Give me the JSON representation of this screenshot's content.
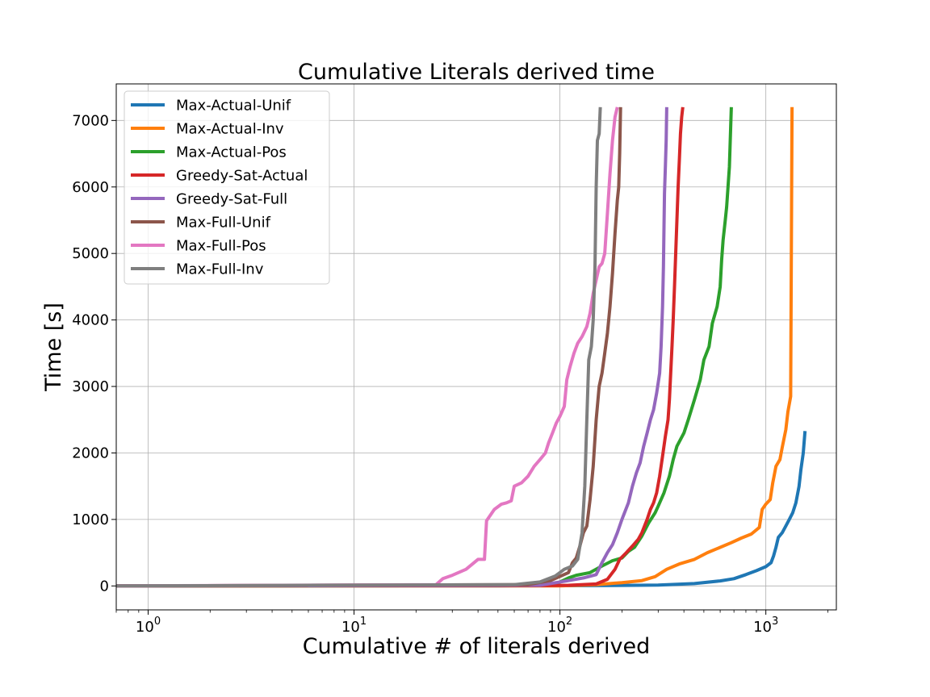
{
  "chart_data": {
    "type": "line",
    "title": "Cumulative Literals derived time",
    "xlabel": "Cumulative # of literals derived",
    "ylabel": "Time [s]",
    "x_scale": "log",
    "xlim": [
      0.7,
      2200
    ],
    "ylim": [
      -360,
      7550
    ],
    "x_ticks": [
      {
        "value": 1,
        "base": "10",
        "exp": "0"
      },
      {
        "value": 10,
        "base": "10",
        "exp": "1"
      },
      {
        "value": 100,
        "base": "10",
        "exp": "2"
      },
      {
        "value": 1000,
        "base": "10",
        "exp": "3"
      }
    ],
    "y_ticks": [
      {
        "value": 0,
        "label": "0"
      },
      {
        "value": 1000,
        "label": "1000"
      },
      {
        "value": 2000,
        "label": "2000"
      },
      {
        "value": 3000,
        "label": "3000"
      },
      {
        "value": 4000,
        "label": "4000"
      },
      {
        "value": 5000,
        "label": "5000"
      },
      {
        "value": 6000,
        "label": "6000"
      },
      {
        "value": 7000,
        "label": "7000"
      }
    ],
    "grid": true,
    "legend_position": "top-left",
    "series": [
      {
        "name": "Max-Actual-Unif",
        "color": "#1f77b4",
        "points": [
          [
            0.7,
            0
          ],
          [
            50,
            2
          ],
          [
            150,
            5
          ],
          [
            300,
            12
          ],
          [
            450,
            35
          ],
          [
            600,
            75
          ],
          [
            700,
            110
          ],
          [
            800,
            170
          ],
          [
            900,
            230
          ],
          [
            1000,
            290
          ],
          [
            1060,
            350
          ],
          [
            1090,
            450
          ],
          [
            1120,
            580
          ],
          [
            1150,
            730
          ],
          [
            1200,
            800
          ],
          [
            1250,
            900
          ],
          [
            1300,
            1000
          ],
          [
            1350,
            1100
          ],
          [
            1400,
            1250
          ],
          [
            1450,
            1500
          ],
          [
            1480,
            1750
          ],
          [
            1520,
            2000
          ],
          [
            1550,
            2330
          ]
        ]
      },
      {
        "name": "Max-Actual-Inv",
        "color": "#ff7f0e",
        "points": [
          [
            0.7,
            0
          ],
          [
            100,
            2
          ],
          [
            150,
            20
          ],
          [
            200,
            50
          ],
          [
            250,
            80
          ],
          [
            290,
            140
          ],
          [
            330,
            250
          ],
          [
            380,
            330
          ],
          [
            450,
            400
          ],
          [
            520,
            500
          ],
          [
            600,
            580
          ],
          [
            680,
            650
          ],
          [
            760,
            720
          ],
          [
            850,
            780
          ],
          [
            930,
            880
          ],
          [
            960,
            1150
          ],
          [
            1000,
            1230
          ],
          [
            1050,
            1300
          ],
          [
            1080,
            1550
          ],
          [
            1120,
            1800
          ],
          [
            1170,
            1900
          ],
          [
            1200,
            2080
          ],
          [
            1250,
            2350
          ],
          [
            1280,
            2620
          ],
          [
            1320,
            2850
          ],
          [
            1340,
            7200
          ]
        ]
      },
      {
        "name": "Max-Actual-Pos",
        "color": "#2ca02c",
        "points": [
          [
            0.7,
            0
          ],
          [
            50,
            5
          ],
          [
            90,
            20
          ],
          [
            100,
            60
          ],
          [
            110,
            120
          ],
          [
            120,
            160
          ],
          [
            140,
            200
          ],
          [
            160,
            300
          ],
          [
            180,
            380
          ],
          [
            200,
            420
          ],
          [
            215,
            520
          ],
          [
            230,
            580
          ],
          [
            250,
            750
          ],
          [
            270,
            950
          ],
          [
            290,
            1100
          ],
          [
            300,
            1200
          ],
          [
            320,
            1400
          ],
          [
            340,
            1650
          ],
          [
            355,
            1900
          ],
          [
            370,
            2100
          ],
          [
            400,
            2300
          ],
          [
            420,
            2500
          ],
          [
            450,
            2800
          ],
          [
            480,
            3100
          ],
          [
            500,
            3400
          ],
          [
            530,
            3600
          ],
          [
            550,
            3950
          ],
          [
            580,
            4200
          ],
          [
            600,
            4500
          ],
          [
            610,
            4900
          ],
          [
            620,
            5200
          ],
          [
            635,
            5500
          ],
          [
            645,
            5700
          ],
          [
            655,
            6000
          ],
          [
            665,
            6300
          ],
          [
            670,
            6600
          ],
          [
            675,
            6900
          ],
          [
            680,
            7200
          ]
        ]
      },
      {
        "name": "Greedy-Sat-Actual",
        "color": "#d62728",
        "points": [
          [
            0.7,
            0
          ],
          [
            80,
            5
          ],
          [
            110,
            10
          ],
          [
            150,
            30
          ],
          [
            170,
            100
          ],
          [
            185,
            250
          ],
          [
            195,
            400
          ],
          [
            210,
            500
          ],
          [
            225,
            600
          ],
          [
            240,
            700
          ],
          [
            250,
            800
          ],
          [
            265,
            1000
          ],
          [
            275,
            1150
          ],
          [
            285,
            1250
          ],
          [
            295,
            1400
          ],
          [
            305,
            1650
          ],
          [
            315,
            1950
          ],
          [
            325,
            2250
          ],
          [
            335,
            2500
          ],
          [
            340,
            2800
          ],
          [
            345,
            3200
          ],
          [
            350,
            3600
          ],
          [
            355,
            4000
          ],
          [
            360,
            4500
          ],
          [
            365,
            5000
          ],
          [
            370,
            5500
          ],
          [
            375,
            6000
          ],
          [
            380,
            6400
          ],
          [
            385,
            6800
          ],
          [
            390,
            7050
          ],
          [
            395,
            7200
          ]
        ]
      },
      {
        "name": "Greedy-Sat-Full",
        "color": "#9467bd",
        "points": [
          [
            0.7,
            0
          ],
          [
            80,
            10
          ],
          [
            110,
            80
          ],
          [
            130,
            120
          ],
          [
            150,
            170
          ],
          [
            160,
            350
          ],
          [
            170,
            500
          ],
          [
            180,
            620
          ],
          [
            190,
            800
          ],
          [
            200,
            1000
          ],
          [
            215,
            1250
          ],
          [
            225,
            1500
          ],
          [
            235,
            1700
          ],
          [
            245,
            1850
          ],
          [
            255,
            2100
          ],
          [
            265,
            2300
          ],
          [
            275,
            2500
          ],
          [
            285,
            2650
          ],
          [
            295,
            2900
          ],
          [
            305,
            3200
          ],
          [
            310,
            3600
          ],
          [
            315,
            4200
          ],
          [
            318,
            4800
          ],
          [
            320,
            5400
          ],
          [
            322,
            5900
          ],
          [
            325,
            6300
          ],
          [
            328,
            6700
          ],
          [
            330,
            7200
          ]
        ]
      },
      {
        "name": "Max-Full-Unif",
        "color": "#8c564b",
        "points": [
          [
            0.7,
            0
          ],
          [
            70,
            20
          ],
          [
            90,
            80
          ],
          [
            110,
            200
          ],
          [
            115,
            350
          ],
          [
            120,
            420
          ],
          [
            125,
            600
          ],
          [
            130,
            800
          ],
          [
            135,
            900
          ],
          [
            140,
            1300
          ],
          [
            145,
            1800
          ],
          [
            150,
            2500
          ],
          [
            155,
            3000
          ],
          [
            160,
            3200
          ],
          [
            165,
            3500
          ],
          [
            170,
            3800
          ],
          [
            175,
            4200
          ],
          [
            180,
            4700
          ],
          [
            185,
            5300
          ],
          [
            190,
            5800
          ],
          [
            193,
            6000
          ],
          [
            195,
            6500
          ],
          [
            197,
            7200
          ]
        ]
      },
      {
        "name": "Max-Full-Pos",
        "color": "#e377c2",
        "points": [
          [
            0.7,
            0
          ],
          [
            25,
            20
          ],
          [
            27,
            110
          ],
          [
            30,
            160
          ],
          [
            35,
            250
          ],
          [
            40,
            400
          ],
          [
            43,
            400
          ],
          [
            44,
            980
          ],
          [
            48,
            1150
          ],
          [
            52,
            1230
          ],
          [
            55,
            1250
          ],
          [
            58,
            1280
          ],
          [
            60,
            1500
          ],
          [
            65,
            1550
          ],
          [
            70,
            1650
          ],
          [
            75,
            1800
          ],
          [
            80,
            1900
          ],
          [
            85,
            2000
          ],
          [
            88,
            2150
          ],
          [
            92,
            2300
          ],
          [
            96,
            2450
          ],
          [
            100,
            2550
          ],
          [
            105,
            2700
          ],
          [
            108,
            3100
          ],
          [
            112,
            3300
          ],
          [
            117,
            3500
          ],
          [
            122,
            3650
          ],
          [
            128,
            3750
          ],
          [
            135,
            3900
          ],
          [
            140,
            4100
          ],
          [
            145,
            4400
          ],
          [
            150,
            4600
          ],
          [
            155,
            4800
          ],
          [
            160,
            4850
          ],
          [
            165,
            5000
          ],
          [
            170,
            5600
          ],
          [
            175,
            6200
          ],
          [
            180,
            6700
          ],
          [
            185,
            7050
          ],
          [
            190,
            7200
          ]
        ]
      },
      {
        "name": "Max-Full-Inv",
        "color": "#7f7f7f",
        "points": [
          [
            0.7,
            0
          ],
          [
            60,
            20
          ],
          [
            80,
            60
          ],
          [
            95,
            150
          ],
          [
            105,
            250
          ],
          [
            115,
            300
          ],
          [
            122,
            400
          ],
          [
            125,
            600
          ],
          [
            128,
            800
          ],
          [
            132,
            1500
          ],
          [
            135,
            2500
          ],
          [
            138,
            3400
          ],
          [
            142,
            3600
          ],
          [
            145,
            4000
          ],
          [
            148,
            4800
          ],
          [
            150,
            6000
          ],
          [
            152,
            6700
          ],
          [
            155,
            6800
          ],
          [
            157,
            7200
          ]
        ]
      }
    ]
  }
}
